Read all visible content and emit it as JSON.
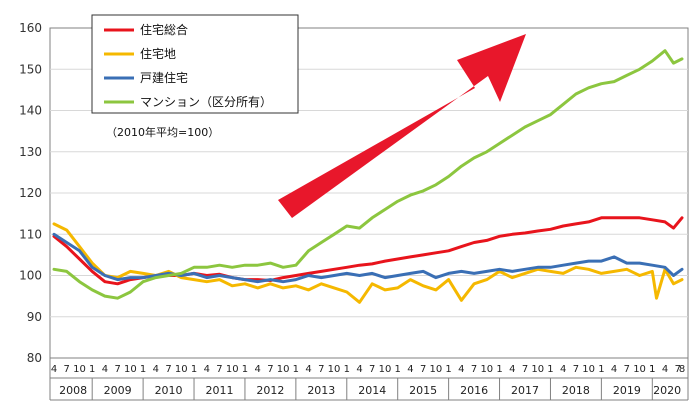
{
  "chart_data": {
    "type": "line",
    "ylim": [
      80,
      160
    ],
    "yticks": [
      80,
      90,
      100,
      110,
      120,
      130,
      140,
      150,
      160
    ],
    "years": [
      "2008",
      "2009",
      "2010",
      "2011",
      "2012",
      "2013",
      "2014",
      "2015",
      "2016",
      "2017",
      "2018",
      "2019",
      "2020"
    ],
    "month_ticks": [
      "4",
      "7",
      "10",
      "1"
    ],
    "last_year_ticks": [
      "1",
      "4",
      "7",
      "8"
    ],
    "note": "（2010年平均=100）",
    "grid": true,
    "legend_position": "top-left",
    "x_start": "2008-04",
    "x_end": "2020-08",
    "series": [
      {
        "name": "住宅総合",
        "color": "#e8141c",
        "points": [
          [
            "2008-04",
            109.5
          ],
          [
            "2008-07",
            107
          ],
          [
            "2008-10",
            104
          ],
          [
            "2009-01",
            101
          ],
          [
            "2009-04",
            98.5
          ],
          [
            "2009-07",
            98
          ],
          [
            "2009-10",
            99
          ],
          [
            "2010-01",
            99.5
          ],
          [
            "2010-04",
            100
          ],
          [
            "2010-07",
            100
          ],
          [
            "2010-10",
            100
          ],
          [
            "2011-01",
            100.5
          ],
          [
            "2011-04",
            100
          ],
          [
            "2011-07",
            100.3
          ],
          [
            "2011-10",
            99.5
          ],
          [
            "2012-01",
            99
          ],
          [
            "2012-04",
            99
          ],
          [
            "2012-07",
            98.8
          ],
          [
            "2012-10",
            99.5
          ],
          [
            "2013-01",
            100
          ],
          [
            "2013-04",
            100.5
          ],
          [
            "2013-07",
            101
          ],
          [
            "2013-10",
            101.5
          ],
          [
            "2014-01",
            102
          ],
          [
            "2014-04",
            102.5
          ],
          [
            "2014-07",
            102.8
          ],
          [
            "2014-10",
            103.5
          ],
          [
            "2015-01",
            104
          ],
          [
            "2015-04",
            104.5
          ],
          [
            "2015-07",
            105
          ],
          [
            "2015-10",
            105.5
          ],
          [
            "2016-01",
            106
          ],
          [
            "2016-04",
            107
          ],
          [
            "2016-07",
            108
          ],
          [
            "2016-10",
            108.5
          ],
          [
            "2017-01",
            109.5
          ],
          [
            "2017-04",
            110
          ],
          [
            "2017-07",
            110.3
          ],
          [
            "2017-10",
            110.8
          ],
          [
            "2018-01",
            111.2
          ],
          [
            "2018-04",
            112
          ],
          [
            "2018-07",
            112.5
          ],
          [
            "2018-10",
            113
          ],
          [
            "2019-01",
            114
          ],
          [
            "2019-04",
            114
          ],
          [
            "2019-07",
            114
          ],
          [
            "2019-10",
            114
          ],
          [
            "2020-01",
            113.5
          ],
          [
            "2020-04",
            113
          ],
          [
            "2020-06",
            111.5
          ],
          [
            "2020-08",
            114
          ]
        ]
      },
      {
        "name": "住宅地",
        "color": "#f5b800",
        "points": [
          [
            "2008-04",
            112.5
          ],
          [
            "2008-07",
            111
          ],
          [
            "2008-10",
            107
          ],
          [
            "2009-01",
            103
          ],
          [
            "2009-04",
            100
          ],
          [
            "2009-07",
            99.5
          ],
          [
            "2009-10",
            101
          ],
          [
            "2010-01",
            100.5
          ],
          [
            "2010-04",
            100
          ],
          [
            "2010-07",
            101
          ],
          [
            "2010-10",
            99.5
          ],
          [
            "2011-01",
            99
          ],
          [
            "2011-04",
            98.5
          ],
          [
            "2011-07",
            99
          ],
          [
            "2011-10",
            97.5
          ],
          [
            "2012-01",
            98
          ],
          [
            "2012-04",
            97
          ],
          [
            "2012-07",
            98
          ],
          [
            "2012-10",
            97
          ],
          [
            "2013-01",
            97.5
          ],
          [
            "2013-04",
            96.5
          ],
          [
            "2013-07",
            98
          ],
          [
            "2013-10",
            97
          ],
          [
            "2014-01",
            96
          ],
          [
            "2014-04",
            93.5
          ],
          [
            "2014-07",
            98
          ],
          [
            "2014-10",
            96.5
          ],
          [
            "2015-01",
            97
          ],
          [
            "2015-04",
            99
          ],
          [
            "2015-07",
            97.5
          ],
          [
            "2015-10",
            96.5
          ],
          [
            "2016-01",
            99
          ],
          [
            "2016-04",
            94
          ],
          [
            "2016-07",
            98
          ],
          [
            "2016-10",
            99
          ],
          [
            "2017-01",
            101
          ],
          [
            "2017-04",
            99.5
          ],
          [
            "2017-07",
            100.5
          ],
          [
            "2017-10",
            101.5
          ],
          [
            "2018-01",
            101
          ],
          [
            "2018-04",
            100.5
          ],
          [
            "2018-07",
            102
          ],
          [
            "2018-10",
            101.5
          ],
          [
            "2019-01",
            100.5
          ],
          [
            "2019-04",
            101
          ],
          [
            "2019-07",
            101.5
          ],
          [
            "2019-10",
            100
          ],
          [
            "2020-01",
            101
          ],
          [
            "2020-02",
            94.5
          ],
          [
            "2020-04",
            101.5
          ],
          [
            "2020-06",
            98
          ],
          [
            "2020-08",
            99
          ]
        ]
      },
      {
        "name": "戸建住宅",
        "color": "#3a6fb5",
        "points": [
          [
            "2008-04",
            110
          ],
          [
            "2008-07",
            108
          ],
          [
            "2008-10",
            106
          ],
          [
            "2009-01",
            102
          ],
          [
            "2009-04",
            100
          ],
          [
            "2009-07",
            99
          ],
          [
            "2009-10",
            99.5
          ],
          [
            "2010-01",
            99.5
          ],
          [
            "2010-04",
            100
          ],
          [
            "2010-07",
            100.5
          ],
          [
            "2010-10",
            100
          ],
          [
            "2011-01",
            100.5
          ],
          [
            "2011-04",
            99.5
          ],
          [
            "2011-07",
            100
          ],
          [
            "2011-10",
            99.5
          ],
          [
            "2012-01",
            99
          ],
          [
            "2012-04",
            98.5
          ],
          [
            "2012-07",
            99
          ],
          [
            "2012-10",
            98.5
          ],
          [
            "2013-01",
            99
          ],
          [
            "2013-04",
            100
          ],
          [
            "2013-07",
            99.5
          ],
          [
            "2013-10",
            100
          ],
          [
            "2014-01",
            100.5
          ],
          [
            "2014-04",
            100
          ],
          [
            "2014-07",
            100.5
          ],
          [
            "2014-10",
            99.5
          ],
          [
            "2015-01",
            100
          ],
          [
            "2015-04",
            100.5
          ],
          [
            "2015-07",
            101
          ],
          [
            "2015-10",
            99.5
          ],
          [
            "2016-01",
            100.5
          ],
          [
            "2016-04",
            101
          ],
          [
            "2016-07",
            100.5
          ],
          [
            "2016-10",
            101
          ],
          [
            "2017-01",
            101.5
          ],
          [
            "2017-04",
            101
          ],
          [
            "2017-07",
            101.5
          ],
          [
            "2017-10",
            102
          ],
          [
            "2018-01",
            102
          ],
          [
            "2018-04",
            102.5
          ],
          [
            "2018-07",
            103
          ],
          [
            "2018-10",
            103.5
          ],
          [
            "2019-01",
            103.5
          ],
          [
            "2019-04",
            104.5
          ],
          [
            "2019-07",
            103
          ],
          [
            "2019-10",
            103
          ],
          [
            "2020-01",
            102.5
          ],
          [
            "2020-04",
            102
          ],
          [
            "2020-06",
            100
          ],
          [
            "2020-08",
            101.5
          ]
        ]
      },
      {
        "name": "マンション（区分所有）",
        "color": "#8cc63f",
        "points": [
          [
            "2008-04",
            101.5
          ],
          [
            "2008-07",
            101
          ],
          [
            "2008-10",
            98.5
          ],
          [
            "2009-01",
            96.5
          ],
          [
            "2009-04",
            95
          ],
          [
            "2009-07",
            94.5
          ],
          [
            "2009-10",
            96
          ],
          [
            "2010-01",
            98.5
          ],
          [
            "2010-04",
            99.5
          ],
          [
            "2010-07",
            100
          ],
          [
            "2010-10",
            100.5
          ],
          [
            "2011-01",
            102
          ],
          [
            "2011-04",
            102
          ],
          [
            "2011-07",
            102.5
          ],
          [
            "2011-10",
            102
          ],
          [
            "2012-01",
            102.5
          ],
          [
            "2012-04",
            102.5
          ],
          [
            "2012-07",
            103
          ],
          [
            "2012-10",
            102
          ],
          [
            "2013-01",
            102.5
          ],
          [
            "2013-04",
            106
          ],
          [
            "2013-07",
            108
          ],
          [
            "2013-10",
            110
          ],
          [
            "2014-01",
            112
          ],
          [
            "2014-04",
            111.5
          ],
          [
            "2014-07",
            114
          ],
          [
            "2014-10",
            116
          ],
          [
            "2015-01",
            118
          ],
          [
            "2015-04",
            119.5
          ],
          [
            "2015-07",
            120.5
          ],
          [
            "2015-10",
            122
          ],
          [
            "2016-01",
            124
          ],
          [
            "2016-04",
            126.5
          ],
          [
            "2016-07",
            128.5
          ],
          [
            "2016-10",
            130
          ],
          [
            "2017-01",
            132
          ],
          [
            "2017-04",
            134
          ],
          [
            "2017-07",
            136
          ],
          [
            "2017-10",
            137.5
          ],
          [
            "2018-01",
            139
          ],
          [
            "2018-04",
            141.5
          ],
          [
            "2018-07",
            144
          ],
          [
            "2018-10",
            145.5
          ],
          [
            "2019-01",
            146.5
          ],
          [
            "2019-04",
            147
          ],
          [
            "2019-07",
            148.5
          ],
          [
            "2019-10",
            150
          ],
          [
            "2020-01",
            152
          ],
          [
            "2020-04",
            154.5
          ],
          [
            "2020-06",
            151.5
          ],
          [
            "2020-08",
            152.5
          ]
        ]
      }
    ]
  },
  "arrow_color": "#e8172b",
  "legend_frame_color": "#333333"
}
